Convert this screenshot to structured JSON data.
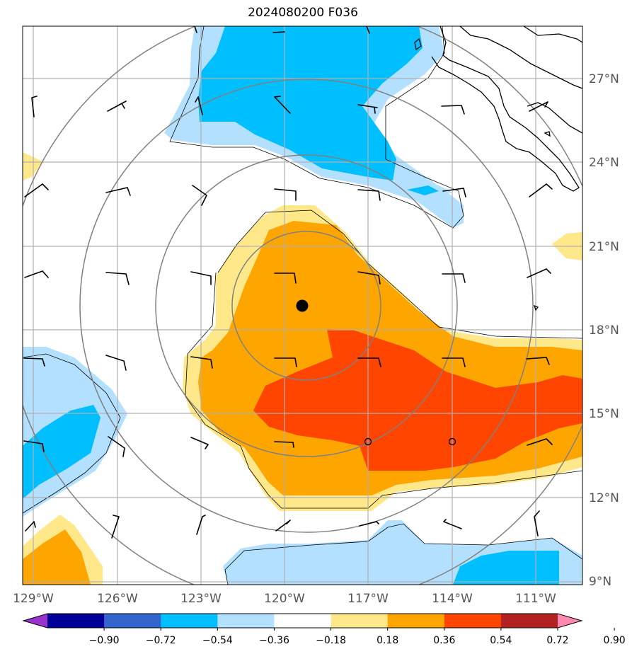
{
  "title": "2024080200 F036",
  "lat_labels": [
    "27°N",
    "24°N",
    "21°N",
    "18°N",
    "15°N",
    "12°N",
    "9°N"
  ],
  "lon_labels": [
    "129°W",
    "126°W",
    "123°W",
    "120°W",
    "117°W",
    "114°W",
    "111°W"
  ],
  "colorbar": {
    "ticks": [
      "−0.90",
      "−0.72",
      "−0.54",
      "−0.36",
      "−0.18",
      "0.18",
      "0.36",
      "0.54",
      "0.72",
      "0.90"
    ],
    "colors": [
      "#9933cc",
      "#000099",
      "#3366cc",
      "#00bfff",
      "#b3e0ff",
      "#ffffff",
      "#ffe88a",
      "#ffa500",
      "#ff4500",
      "#b22222",
      "#ff88b0"
    ]
  },
  "storm_center_icon": "black-dot-icon",
  "markers_icon": "open-circle-icon",
  "chart_data": {
    "type": "map",
    "title": "2024080200 F036",
    "lat_range": [
      9,
      29
    ],
    "lon_range": [
      -129.3,
      -109.3
    ],
    "contour_levels": [
      -0.9,
      -0.72,
      -0.54,
      -0.36,
      -0.18,
      0.18,
      0.36,
      0.54,
      0.72,
      0.9
    ],
    "storm_center": {
      "lat": 19.0,
      "lon": -119.5
    },
    "markers": [
      {
        "lat": 14.0,
        "lon": -117.0
      },
      {
        "lat": 14.0,
        "lon": -114.0
      }
    ]
  }
}
